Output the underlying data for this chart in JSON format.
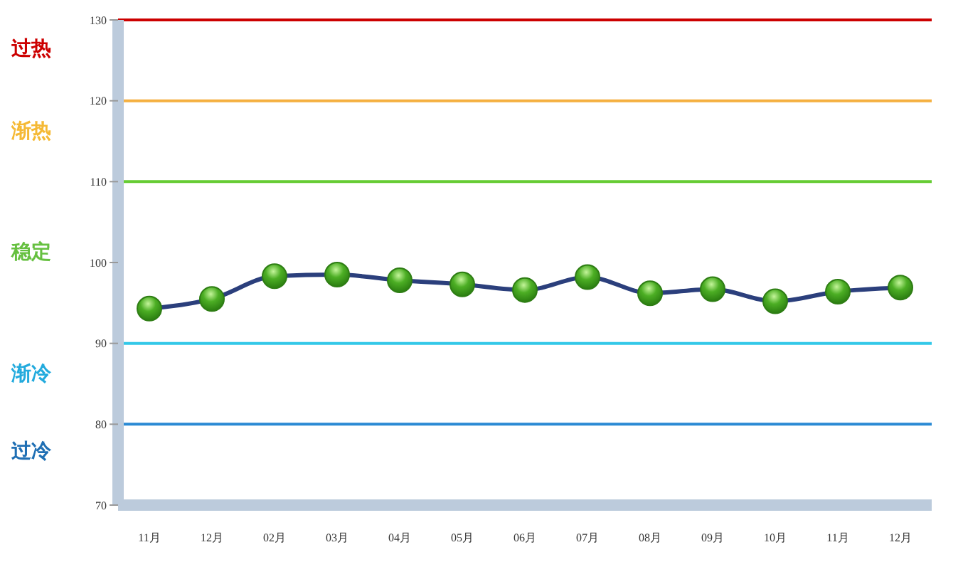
{
  "chart_data": {
    "type": "line",
    "categories": [
      "11月",
      "12月",
      "02月",
      "03月",
      "04月",
      "05月",
      "06月",
      "07月",
      "08月",
      "09月",
      "10月",
      "11月",
      "12月"
    ],
    "series": [
      {
        "color": "#2b3f7c",
        "values": [
          94.3,
          95.5,
          98.3,
          98.5,
          97.8,
          97.3,
          96.6,
          98.2,
          96.2,
          96.7,
          95.2,
          96.4,
          96.9
        ]
      }
    ],
    "ylim": [
      70,
      130
    ],
    "yticks": [
      70,
      80,
      90,
      100,
      110,
      120,
      130
    ],
    "grid": false,
    "legend": false,
    "marker": "circle",
    "line_style": "solid",
    "ref_lines": [
      {
        "axis": "y",
        "value": 130,
        "color": "#cc0000"
      },
      {
        "axis": "y",
        "value": 120,
        "color": "#f5b040"
      },
      {
        "axis": "y",
        "value": 110,
        "color": "#66cc33"
      },
      {
        "axis": "y",
        "value": 90,
        "color": "#33c8e8"
      },
      {
        "axis": "y",
        "value": 80,
        "color": "#2a8ad4"
      }
    ],
    "annotations": [
      "过热",
      "渐热",
      "稳定",
      "渐冷",
      "过冷"
    ]
  }
}
